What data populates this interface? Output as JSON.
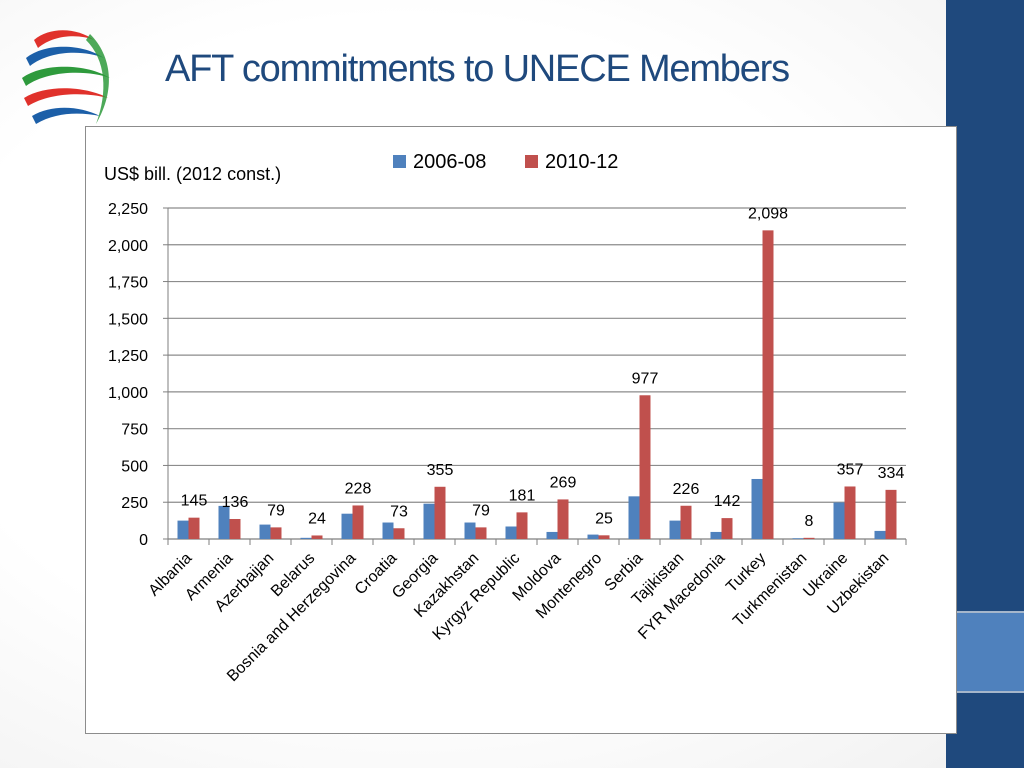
{
  "title": "AFT commitments to UNECE Members",
  "logo": {
    "icon": "wto-logo-icon",
    "colors": [
      "#e0312b",
      "#1c5fa8",
      "#2e9a3c",
      "#e0312b",
      "#1c5fa8"
    ]
  },
  "colors": {
    "series_2006": "#4f81bd",
    "series_2010": "#c0504d",
    "band": "#1f497d",
    "accent": "#4f81bd"
  },
  "chart_data": {
    "type": "bar",
    "ylabel": "US$ bill. (2012 const.)",
    "ylim": [
      0,
      2250
    ],
    "yticks": [
      0,
      250,
      500,
      750,
      1000,
      1250,
      1500,
      1750,
      2000,
      2250
    ],
    "ytick_labels": [
      "0",
      "250",
      "500",
      "750",
      "1,000",
      "1,250",
      "1,500",
      "1,750",
      "2,000",
      "2,250"
    ],
    "grid": true,
    "legend_position": "top",
    "categories": [
      "Albania",
      "Armenia",
      "Azerbaijan",
      "Belarus",
      "Bosnia and Herzegovina",
      "Croatia",
      "Georgia",
      "Kazakhstan",
      "Kyrgyz Republic",
      "Moldova",
      "Montenegro",
      "Serbia",
      "Tajikistan",
      "FYR Macedonia",
      "Turkey",
      "Turkmenistan",
      "Ukraine",
      "Uzbekistan"
    ],
    "series": [
      {
        "name": "2006-08",
        "values": [
          125,
          225,
          98,
          8,
          172,
          112,
          240,
          112,
          85,
          48,
          30,
          290,
          125,
          48,
          408,
          5,
          248,
          55
        ]
      },
      {
        "name": "2010-12",
        "values": [
          145,
          136,
          79,
          24,
          228,
          73,
          355,
          79,
          181,
          269,
          25,
          977,
          226,
          142,
          2098,
          8,
          357,
          334
        ]
      }
    ],
    "data_labels": [
      "145",
      "136",
      "79",
      "24",
      "228",
      "73",
      "355",
      "79",
      "181",
      "269",
      "25",
      "977",
      "226",
      "142",
      "2,098",
      "8",
      "357",
      "334"
    ]
  }
}
